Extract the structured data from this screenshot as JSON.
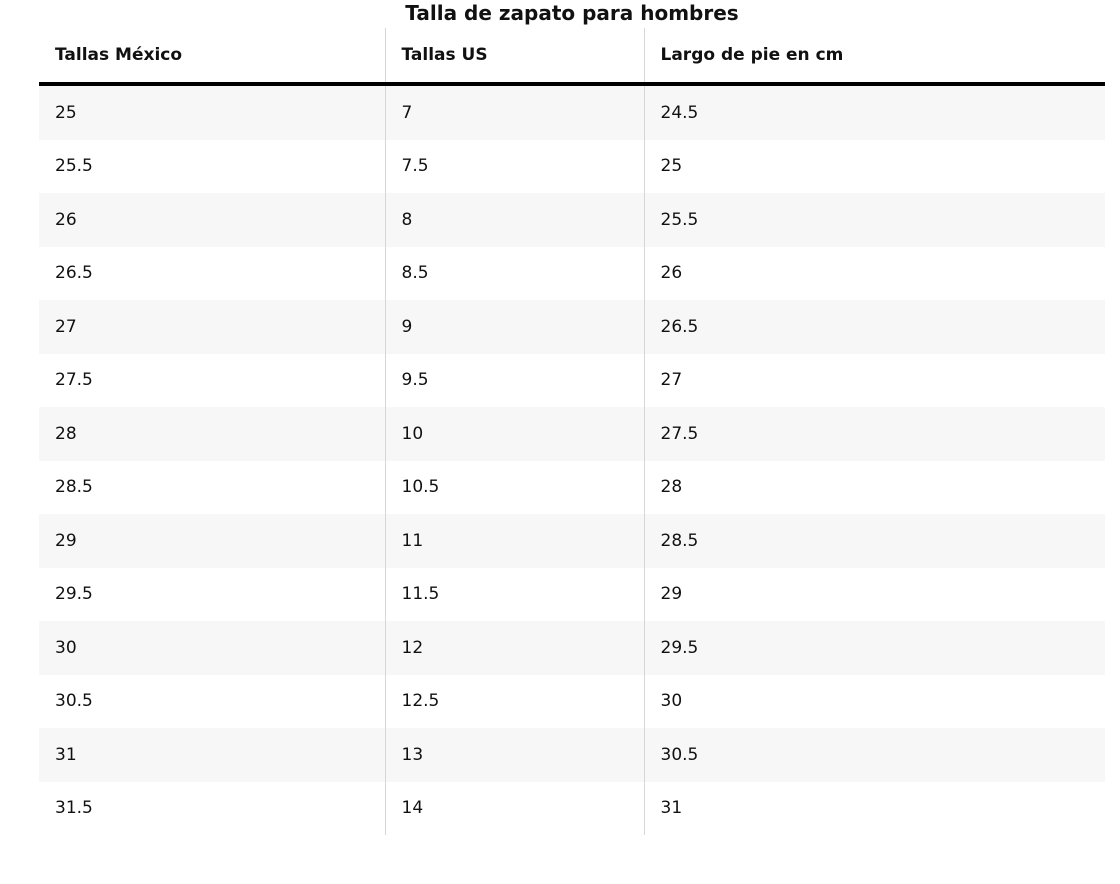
{
  "title": "Talla de zapato para hombres",
  "table": {
    "columns": [
      "Tallas México",
      "Tallas US",
      "Largo de pie en cm"
    ],
    "rows": [
      [
        "25",
        "7",
        "24.5"
      ],
      [
        "25.5",
        "7.5",
        "25"
      ],
      [
        "26",
        "8",
        "25.5"
      ],
      [
        "26.5",
        "8.5",
        "26"
      ],
      [
        "27",
        "9",
        "26.5"
      ],
      [
        "27.5",
        "9.5",
        "27"
      ],
      [
        "28",
        "10",
        "27.5"
      ],
      [
        "28.5",
        "10.5",
        "28"
      ],
      [
        "29",
        "11",
        "28.5"
      ],
      [
        "29.5",
        "11.5",
        "29"
      ],
      [
        "30",
        "12",
        "29.5"
      ],
      [
        "30.5",
        "12.5",
        "30"
      ],
      [
        "31",
        "13",
        "30.5"
      ],
      [
        "31.5",
        "14",
        "31"
      ]
    ]
  }
}
